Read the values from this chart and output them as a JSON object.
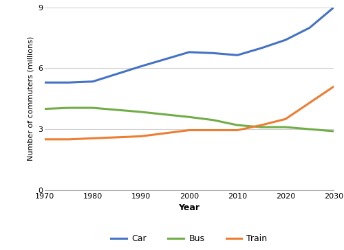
{
  "years": [
    1970,
    1975,
    1980,
    1990,
    2000,
    2005,
    2010,
    2015,
    2020,
    2025,
    2030
  ],
  "car": [
    5.3,
    5.3,
    5.35,
    6.1,
    6.8,
    6.75,
    6.65,
    7.0,
    7.4,
    8.0,
    9.0
  ],
  "bus": [
    4.0,
    4.05,
    4.05,
    3.85,
    3.6,
    3.45,
    3.2,
    3.1,
    3.1,
    3.0,
    2.9
  ],
  "train": [
    2.5,
    2.5,
    2.55,
    2.65,
    2.95,
    2.95,
    2.95,
    3.2,
    3.5,
    4.3,
    5.1
  ],
  "car_color": "#4472C4",
  "bus_color": "#70AD47",
  "train_color": "#ED7D31",
  "ylabel": "Number of commuters (millions)",
  "xlabel": "Year",
  "ylim": [
    0,
    9
  ],
  "xlim": [
    1970,
    2030
  ],
  "yticks": [
    0,
    3,
    6,
    9
  ],
  "xticks": [
    1970,
    1980,
    1990,
    2000,
    2010,
    2020,
    2030
  ],
  "grid_color": "#d0d0d0",
  "line_width": 2.2,
  "legend_labels": [
    "Car",
    "Bus",
    "Train"
  ],
  "background_color": "#ffffff"
}
